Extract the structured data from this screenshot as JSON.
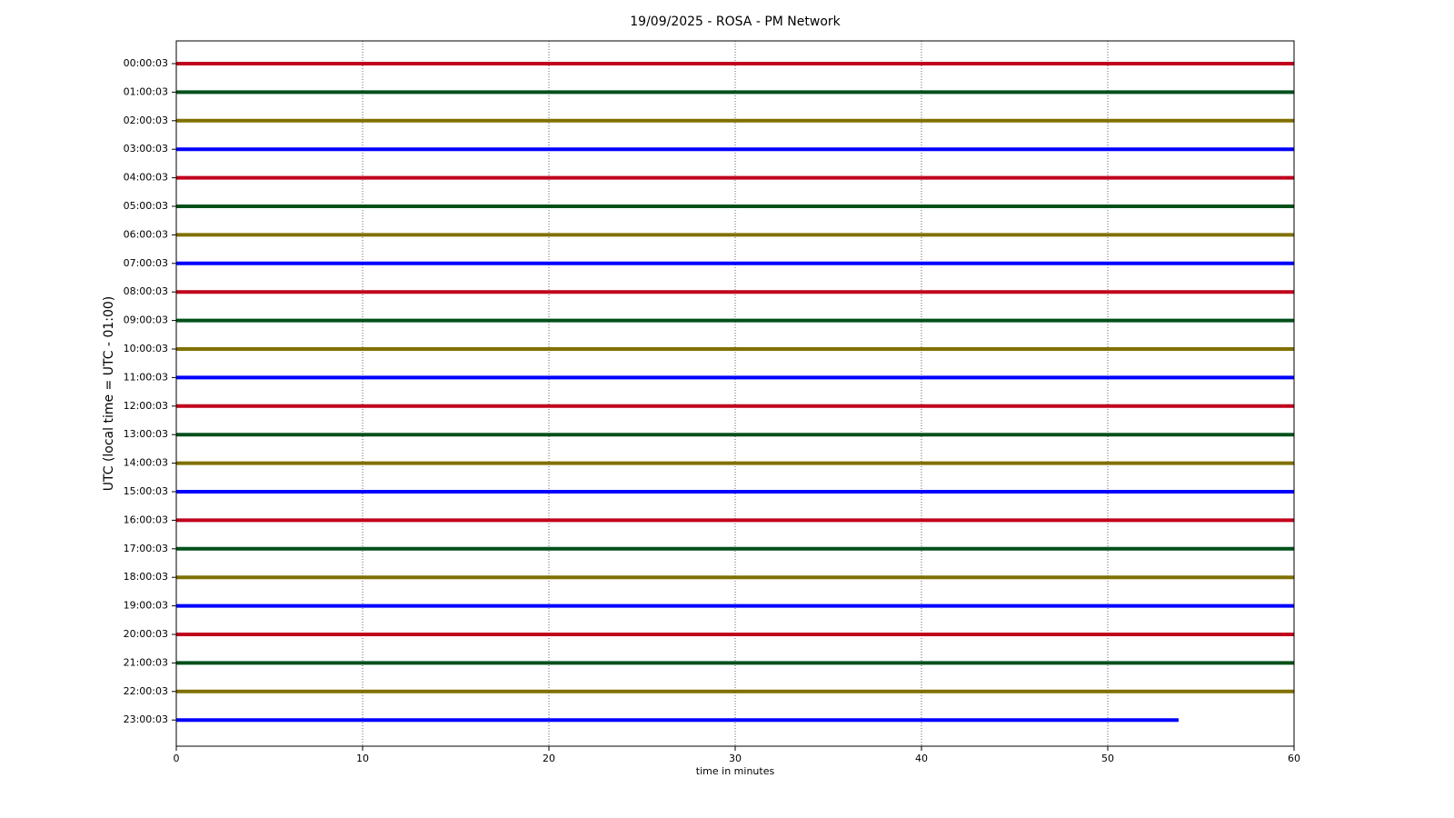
{
  "chart_data": {
    "type": "helicorder",
    "title": "19/09/2025 - ROSA - PM Network",
    "xlabel": "time in minutes",
    "ylabel": "UTC (local time = UTC - 01:00)",
    "xlim": [
      0,
      60
    ],
    "xticks": [
      0,
      10,
      20,
      30,
      40,
      50,
      60
    ],
    "grid": true,
    "rows": [
      {
        "label": "00:00:03",
        "color": "#c0001c",
        "x_end": 60
      },
      {
        "label": "01:00:03",
        "color": "#00501a",
        "x_end": 60
      },
      {
        "label": "02:00:03",
        "color": "#807000",
        "x_end": 60
      },
      {
        "label": "03:00:03",
        "color": "#0000ff",
        "x_end": 60
      },
      {
        "label": "04:00:03",
        "color": "#c0001c",
        "x_end": 60
      },
      {
        "label": "05:00:03",
        "color": "#00501a",
        "x_end": 60
      },
      {
        "label": "06:00:03",
        "color": "#807000",
        "x_end": 60
      },
      {
        "label": "07:00:03",
        "color": "#0000ff",
        "x_end": 60
      },
      {
        "label": "08:00:03",
        "color": "#c0001c",
        "x_end": 60
      },
      {
        "label": "09:00:03",
        "color": "#00501a",
        "x_end": 60
      },
      {
        "label": "10:00:03",
        "color": "#807000",
        "x_end": 60
      },
      {
        "label": "11:00:03",
        "color": "#0000ff",
        "x_end": 60
      },
      {
        "label": "12:00:03",
        "color": "#c0001c",
        "x_end": 60
      },
      {
        "label": "13:00:03",
        "color": "#00501a",
        "x_end": 60
      },
      {
        "label": "14:00:03",
        "color": "#807000",
        "x_end": 60
      },
      {
        "label": "15:00:03",
        "color": "#0000ff",
        "x_end": 60
      },
      {
        "label": "16:00:03",
        "color": "#c0001c",
        "x_end": 60
      },
      {
        "label": "17:00:03",
        "color": "#00501a",
        "x_end": 60
      },
      {
        "label": "18:00:03",
        "color": "#807000",
        "x_end": 60
      },
      {
        "label": "19:00:03",
        "color": "#0000ff",
        "x_end": 60
      },
      {
        "label": "20:00:03",
        "color": "#c0001c",
        "x_end": 60
      },
      {
        "label": "21:00:03",
        "color": "#00501a",
        "x_end": 60
      },
      {
        "label": "22:00:03",
        "color": "#807000",
        "x_end": 60
      },
      {
        "label": "23:00:03",
        "color": "#0000ff",
        "x_end": 53.8
      }
    ]
  }
}
